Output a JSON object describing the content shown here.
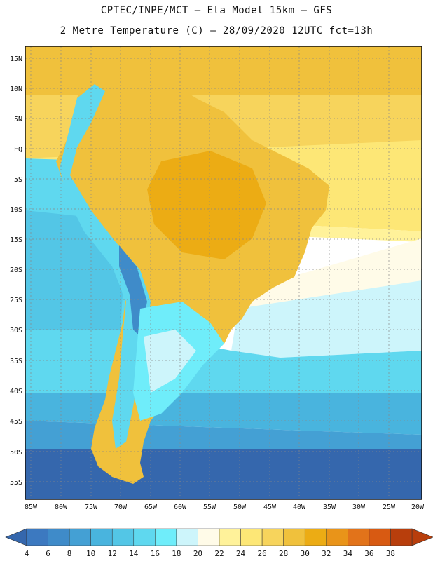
{
  "title_line1": "CPTEC/INPE/MCT –  Eta Model 15km – GFS",
  "title_line2": "2 Metre Temperature (C) – 28/09/2020 12UTC fct=13h",
  "lat_labels": [
    "15N",
    "10N",
    "5N",
    "EQ",
    "5S",
    "10S",
    "15S",
    "20S",
    "25S",
    "30S",
    "35S",
    "40S",
    "45S",
    "50S",
    "55S"
  ],
  "lon_labels": [
    "85W",
    "80W",
    "75W",
    "70W",
    "65W",
    "60W",
    "55W",
    "50W",
    "45W",
    "40W",
    "35W",
    "30W",
    "25W",
    "20W"
  ],
  "colorbar": {
    "ticks": [
      "4",
      "6",
      "8",
      "10",
      "12",
      "14",
      "16",
      "18",
      "20",
      "22",
      "24",
      "26",
      "28",
      "30",
      "32",
      "34",
      "36",
      "38"
    ],
    "colors": [
      "#3c79c0",
      "#3f8bc9",
      "#44a0d4",
      "#49b4de",
      "#53c6e6",
      "#5fd8ef",
      "#6fedfa",
      "#cdf5fb",
      "#fffbe8",
      "#fff29a",
      "#fde776",
      "#f7d45c",
      "#f0c13c",
      "#ecac14",
      "#e99419",
      "#e2731a",
      "#d85a12",
      "#b83e0c"
    ],
    "under_color": "#3567ad",
    "over_color": "#b83e0c"
  }
}
